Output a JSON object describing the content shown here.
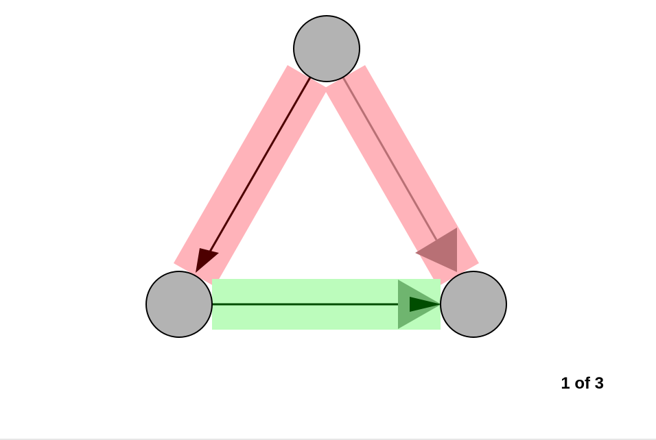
{
  "pager": {
    "current": 1,
    "total": 3,
    "label": "1 of 3"
  },
  "colors": {
    "node_fill": "#b3b3b3",
    "node_stroke": "#000000",
    "highlight_red": "#ffb3ba",
    "highlight_green": "#bcfcbc",
    "arrow_dark_red": "#4d0000",
    "arrow_faded_red": "#b87075",
    "arrow_dark_green": "#004d00",
    "arrow_faded_green": "#6fb56f"
  },
  "graph": {
    "nodes": [
      {
        "id": "top"
      },
      {
        "id": "bottom-left"
      },
      {
        "id": "bottom-right"
      }
    ],
    "edges": [
      {
        "id": "top-to-bottom-left",
        "from": "top",
        "to": "bottom-left",
        "highlight": "red",
        "style": "solid"
      },
      {
        "id": "top-to-bottom-right",
        "from": "top",
        "to": "bottom-right",
        "highlight": "red",
        "style": "faded"
      },
      {
        "id": "bottom-left-to-bottom-right",
        "from": "bottom-left",
        "to": "bottom-right",
        "highlight": "green",
        "style": "solid"
      }
    ]
  }
}
